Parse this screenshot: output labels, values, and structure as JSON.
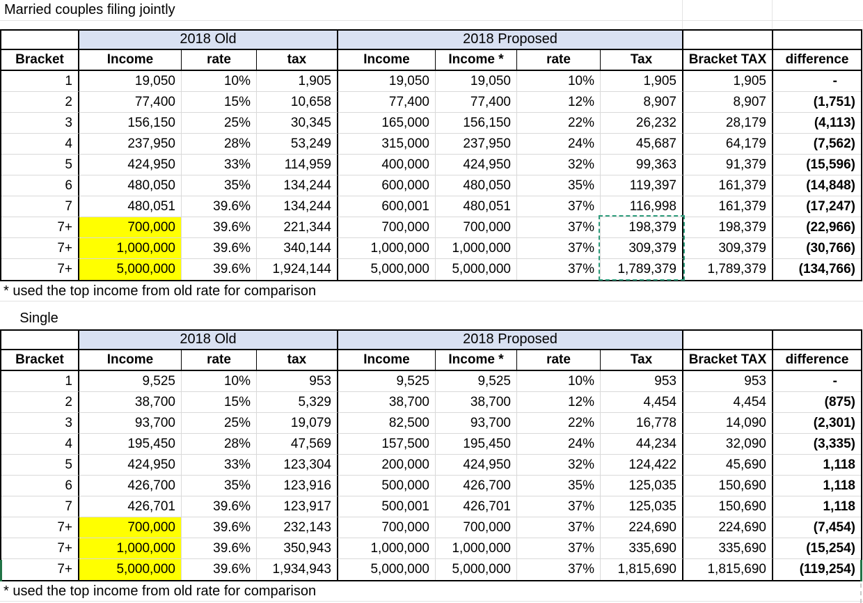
{
  "titles": {
    "married": "Married couples filing jointly",
    "single": "Single",
    "footnote_married": "* used the top income from old rate for comparison",
    "footnote_single": "* used the top income from old rate for comparison"
  },
  "headers": {
    "old_group": "2018 Old",
    "proposed_group": "2018 Proposed",
    "columns": [
      "Bracket",
      "Income",
      "rate",
      "tax",
      "Income",
      "Income *",
      "rate",
      "Tax",
      "Bracket TAX",
      "difference"
    ]
  },
  "tables": {
    "married": {
      "rows": [
        [
          "1",
          "19,050",
          "10%",
          "1,905",
          "19,050",
          "19,050",
          "10%",
          "1,905",
          "1,905",
          "-"
        ],
        [
          "2",
          "77,400",
          "15%",
          "10,658",
          "77,400",
          "77,400",
          "12%",
          "8,907",
          "8,907",
          "(1,751)"
        ],
        [
          "3",
          "156,150",
          "25%",
          "30,345",
          "165,000",
          "156,150",
          "22%",
          "26,232",
          "28,179",
          "(4,113)"
        ],
        [
          "4",
          "237,950",
          "28%",
          "53,249",
          "315,000",
          "237,950",
          "24%",
          "45,687",
          "64,179",
          "(7,562)"
        ],
        [
          "5",
          "424,950",
          "33%",
          "114,959",
          "400,000",
          "424,950",
          "32%",
          "99,363",
          "91,379",
          "(15,596)"
        ],
        [
          "6",
          "480,050",
          "35%",
          "134,244",
          "600,000",
          "480,050",
          "35%",
          "119,397",
          "161,379",
          "(14,848)"
        ],
        [
          "7",
          "480,051",
          "39.6%",
          "134,244",
          "600,001",
          "480,051",
          "37%",
          "116,998",
          "161,379",
          "(17,247)"
        ],
        [
          "7+",
          "700,000",
          "39.6%",
          "221,344",
          "700,000",
          "700,000",
          "37%",
          "198,379",
          "198,379",
          "(22,966)"
        ],
        [
          "7+",
          "1,000,000",
          "39.6%",
          "340,144",
          "1,000,000",
          "1,000,000",
          "37%",
          "309,379",
          "309,379",
          "(30,766)"
        ],
        [
          "7+",
          "5,000,000",
          "39.6%",
          "1,924,144",
          "5,000,000",
          "5,000,000",
          "37%",
          "1,789,379",
          "1,789,379",
          "(134,766)"
        ]
      ]
    },
    "single": {
      "rows": [
        [
          "1",
          "9,525",
          "10%",
          "953",
          "9,525",
          "9,525",
          "10%",
          "953",
          "953",
          "-"
        ],
        [
          "2",
          "38,700",
          "15%",
          "5,329",
          "38,700",
          "38,700",
          "12%",
          "4,454",
          "4,454",
          "(875)"
        ],
        [
          "3",
          "93,700",
          "25%",
          "19,079",
          "82,500",
          "93,700",
          "22%",
          "16,778",
          "14,090",
          "(2,301)"
        ],
        [
          "4",
          "195,450",
          "28%",
          "47,569",
          "157,500",
          "195,450",
          "24%",
          "44,234",
          "32,090",
          "(3,335)"
        ],
        [
          "5",
          "424,950",
          "33%",
          "123,304",
          "200,000",
          "424,950",
          "32%",
          "124,422",
          "45,690",
          "1,118"
        ],
        [
          "6",
          "426,700",
          "35%",
          "123,916",
          "500,000",
          "426,700",
          "35%",
          "125,035",
          "150,690",
          "1,118"
        ],
        [
          "7",
          "426,701",
          "39.6%",
          "123,917",
          "500,001",
          "426,701",
          "37%",
          "125,035",
          "150,690",
          "1,118"
        ],
        [
          "7+",
          "700,000",
          "39.6%",
          "232,143",
          "700,000",
          "700,000",
          "37%",
          "224,690",
          "224,690",
          "(7,454)"
        ],
        [
          "7+",
          "1,000,000",
          "39.6%",
          "350,943",
          "1,000,000",
          "1,000,000",
          "37%",
          "335,690",
          "335,690",
          "(15,254)"
        ],
        [
          "7+",
          "5,000,000",
          "39.6%",
          "1,934,943",
          "5,000,000",
          "5,000,000",
          "37%",
          "1,815,690",
          "1,815,690",
          "(119,254)"
        ]
      ]
    }
  },
  "colors": {
    "group_band": "#d9e1f2",
    "highlight": "#ffff00",
    "selection_green": "#217346",
    "marquee_teal": "#2e9d7c",
    "gridline": "#d9d9d9"
  }
}
